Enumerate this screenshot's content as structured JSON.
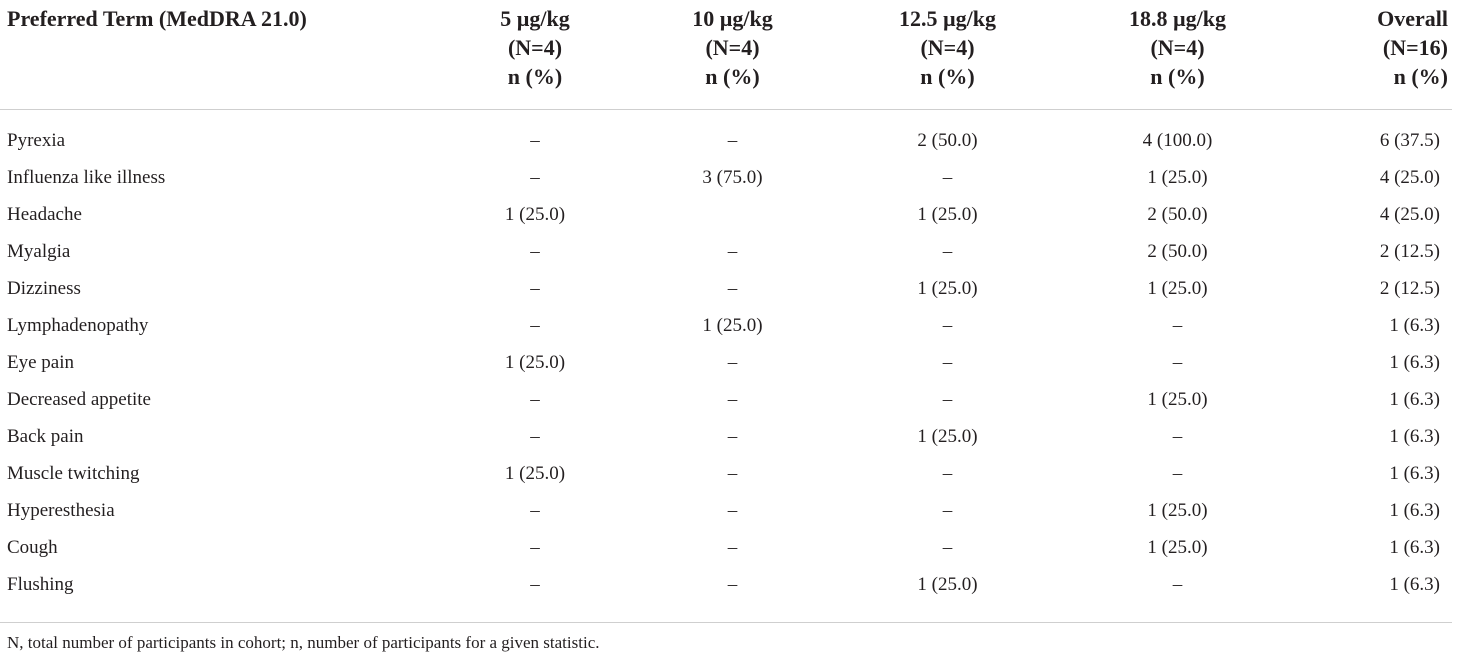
{
  "table": {
    "columns": [
      {
        "lines": [
          "Preferred Term (MedDRA 21.0)"
        ]
      },
      {
        "lines": [
          "5 µg/kg",
          "(N=4)",
          "n (%)"
        ]
      },
      {
        "lines": [
          "10 µg/kg",
          "(N=4)",
          "n (%)"
        ]
      },
      {
        "lines": [
          "12.5 µg/kg",
          "(N=4)",
          "n (%)"
        ]
      },
      {
        "lines": [
          "18.8 µg/kg",
          "(N=4)",
          "n (%)"
        ]
      },
      {
        "lines": [
          "Overall",
          "(N=16)",
          "n (%)"
        ]
      }
    ],
    "rows": [
      {
        "term": "Pyrexia",
        "values": [
          "–",
          "–",
          "2 (50.0)",
          "4 (100.0)",
          "6 (37.5)"
        ]
      },
      {
        "term": "Influenza like illness",
        "values": [
          "–",
          "3 (75.0)",
          "–",
          "1 (25.0)",
          "4 (25.0)"
        ]
      },
      {
        "term": "Headache",
        "values": [
          "1 (25.0)",
          "",
          "1 (25.0)",
          "2 (50.0)",
          "4 (25.0)"
        ]
      },
      {
        "term": "Myalgia",
        "values": [
          "–",
          "–",
          "–",
          "2 (50.0)",
          "2 (12.5)"
        ]
      },
      {
        "term": "Dizziness",
        "values": [
          "–",
          "–",
          "1 (25.0)",
          "1 (25.0)",
          "2 (12.5)"
        ]
      },
      {
        "term": "Lymphadenopathy",
        "values": [
          "–",
          "1 (25.0)",
          "–",
          "–",
          "1 (6.3)"
        ]
      },
      {
        "term": "Eye pain",
        "values": [
          "1 (25.0)",
          "–",
          "–",
          "–",
          "1 (6.3)"
        ]
      },
      {
        "term": "Decreased appetite",
        "values": [
          "–",
          "–",
          "–",
          "1 (25.0)",
          "1 (6.3)"
        ]
      },
      {
        "term": "Back pain",
        "values": [
          "–",
          "–",
          "1 (25.0)",
          "–",
          "1 (6.3)"
        ]
      },
      {
        "term": "Muscle twitching",
        "values": [
          "1 (25.0)",
          "–",
          "–",
          "–",
          "1 (6.3)"
        ]
      },
      {
        "term": "Hyperesthesia",
        "values": [
          "–",
          "–",
          "–",
          "1 (25.0)",
          "1 (6.3)"
        ]
      },
      {
        "term": "Cough",
        "values": [
          "–",
          "–",
          "–",
          "1 (25.0)",
          "1 (6.3)"
        ]
      },
      {
        "term": "Flushing",
        "values": [
          "–",
          "–",
          "1 (25.0)",
          "–",
          "1 (6.3)"
        ]
      }
    ]
  },
  "footnote": "N, total number of participants in cohort; n, number of participants for a given statistic."
}
